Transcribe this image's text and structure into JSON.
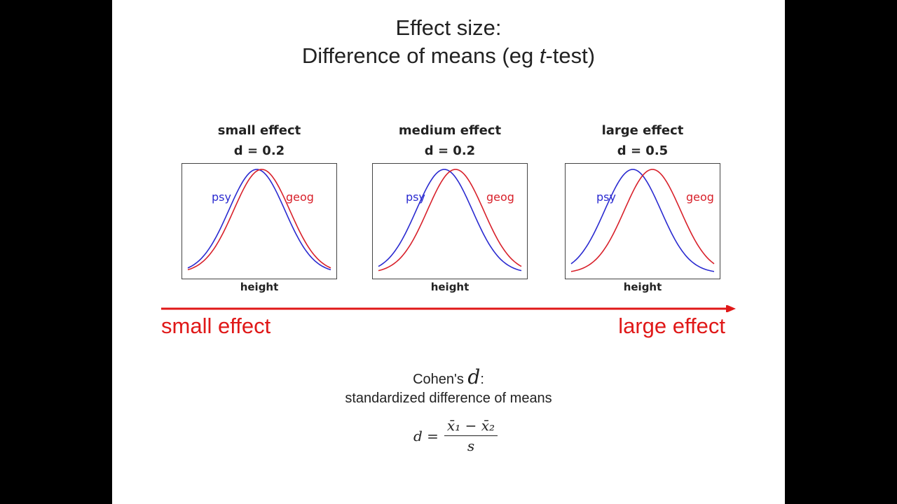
{
  "title_line1": "Effect size:",
  "title_line2_pre": "Difference of means (eg ",
  "title_line2_t": "t",
  "title_line2_post": "-test)",
  "panels": [
    {
      "title": "small effect",
      "d_label": "d = 0.2",
      "series_a": "psy",
      "series_b": "geog",
      "xlabel": "height"
    },
    {
      "title": "medium effect",
      "d_label": "d = 0.2",
      "series_a": "psy",
      "series_b": "geog",
      "xlabel": "height"
    },
    {
      "title": "large effect",
      "d_label": "d = 0.5",
      "series_a": "psy",
      "series_b": "geog",
      "xlabel": "height"
    }
  ],
  "colors": {
    "psy": "#2a2ad0",
    "geog": "#d8202a",
    "arrow": "#e01818"
  },
  "scale": {
    "left": "small effect",
    "right": "large effect"
  },
  "cohen": {
    "label": "Cohen's ",
    "symbol": "d",
    "colon": ":",
    "description": "standardized difference of means"
  },
  "formula": {
    "lhs": "d =",
    "numerator": "x̄₁ − x̄₂",
    "denominator": "s"
  }
}
